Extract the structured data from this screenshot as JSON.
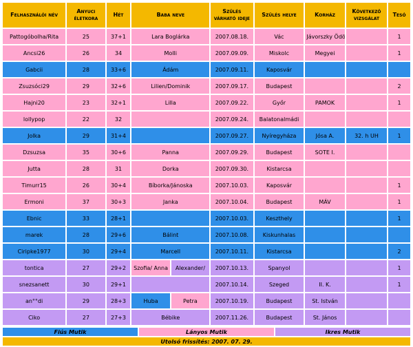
{
  "colors": {
    "header": "#f4b800",
    "boy": "#2f8fe8",
    "girl": "#ffa6cf",
    "twin": "#c39af3"
  },
  "headers": [
    "Felhasználói név",
    "Anyuci életkora",
    "Hét",
    "Baba neve",
    "Szülés várható ideje",
    "Szülés helye",
    "Korház",
    "Következő vizsgálat",
    "Tesó"
  ],
  "rows": [
    {
      "nick": "Pattogóbolha/Rita",
      "age": "25",
      "week": "37+1",
      "baby": "Lara Boglárka",
      "due": "2007.08.18.",
      "place": "Vác",
      "hospital": "Jávorszky Ödön",
      "next": "",
      "sib": "1",
      "type": "girl"
    },
    {
      "nick": "Ancsi26",
      "age": "26",
      "week": "34",
      "baby": "Molli",
      "due": "2007.09.09.",
      "place": "Miskolc",
      "hospital": "Megyei",
      "next": "",
      "sib": "1",
      "type": "girl"
    },
    {
      "nick": "Gabcii",
      "age": "28",
      "week": "33+6",
      "baby": "Ádám",
      "due": "2007.09.11.",
      "place": "Kaposvár",
      "hospital": "",
      "next": "",
      "sib": "",
      "type": "boy"
    },
    {
      "nick": "Zsuzsóci29",
      "age": "29",
      "week": "32+6",
      "baby": "Lilien/Dominik",
      "due": "2007.09.17.",
      "place": "Budapest",
      "hospital": "",
      "next": "",
      "sib": "2",
      "type": "girl"
    },
    {
      "nick": "Hajni20",
      "age": "23",
      "week": "32+1",
      "baby": "Lilla",
      "due": "2007.09.22.",
      "place": "Győr",
      "hospital": "PAMOK",
      "next": "",
      "sib": "1",
      "type": "girl"
    },
    {
      "nick": "lollypop",
      "age": "22",
      "week": "32",
      "baby": "",
      "due": "2007.09.24.",
      "place": "Balatonalmádi",
      "hospital": "",
      "next": "",
      "sib": "",
      "type": "girl"
    },
    {
      "nick": "Jolka",
      "age": "29",
      "week": "31+4",
      "baby": "",
      "due": "2007.09.27.",
      "place": "Nyíregyháza",
      "hospital": "Jósa A.",
      "next": "32. h UH",
      "sib": "1",
      "type": "boy"
    },
    {
      "nick": "Dzsuzsa",
      "age": "35",
      "week": "30+6",
      "baby": "Panna",
      "due": "2007.09.29.",
      "place": "Budapest",
      "hospital": "SOTE I.",
      "next": "",
      "sib": "",
      "type": "girl"
    },
    {
      "nick": "Jutta",
      "age": "28",
      "week": "31",
      "baby": "Dorka",
      "due": "2007.09.30.",
      "place": "Kistarcsa",
      "hospital": "",
      "next": "",
      "sib": "",
      "type": "girl"
    },
    {
      "nick": "Timurr15",
      "age": "26",
      "week": "30+4",
      "baby": "Bíborka/Jánoska",
      "due": "2007.10.03.",
      "place": "Kaposvár",
      "hospital": "",
      "next": "",
      "sib": "1",
      "type": "girl"
    },
    {
      "nick": "Ermoni",
      "age": "37",
      "week": "30+3",
      "baby": "Janka",
      "due": "2007.10.04.",
      "place": "Budapest",
      "hospital": "MÁV",
      "next": "",
      "sib": "1",
      "type": "girl"
    },
    {
      "nick": "Ebnic",
      "age": "33",
      "week": "28+1",
      "baby": "",
      "due": "2007.10.03.",
      "place": "Keszthely",
      "hospital": "",
      "next": "",
      "sib": "1",
      "type": "boy"
    },
    {
      "nick": "marek",
      "age": "28",
      "week": "29+6",
      "baby": "Bálint",
      "due": "2007.10.08.",
      "place": "Kiskunhalas",
      "hospital": "",
      "next": "",
      "sib": "",
      "type": "boy"
    },
    {
      "nick": "Ciripke1977",
      "age": "30",
      "week": "29+4",
      "baby": "Marcell",
      "due": "2007.10.11.",
      "place": "Kistarcsa",
      "hospital": "",
      "next": "",
      "sib": "2",
      "type": "boy"
    },
    {
      "nick": "tontica",
      "age": "27",
      "week": "29+2",
      "baby_a": "Szofia/ Anna",
      "baby_b": "Alexander/",
      "due": "2007.10.13.",
      "place": "Spanyol",
      "hospital": "",
      "next": "",
      "sib": "1",
      "type": "twin",
      "split": "girl-twin"
    },
    {
      "nick": "snezsanett",
      "age": "30",
      "week": "29+1",
      "baby": "",
      "due": "2007.10.14.",
      "place": "Szeged",
      "hospital": "II. K.",
      "next": "",
      "sib": "1",
      "type": "twin"
    },
    {
      "nick": "an°°di",
      "age": "29",
      "week": "28+3",
      "baby_a": "Huba",
      "baby_b": "Petra",
      "due": "2007.10.19.",
      "place": "Budapest",
      "hospital": "St. István",
      "next": "",
      "sib": "",
      "type": "twin",
      "split": "boy-girl"
    },
    {
      "nick": "Ciko",
      "age": "27",
      "week": "27+3",
      "baby": "Bébike",
      "due": "2007.11.26.",
      "place": "Budapest",
      "hospital": "St. János",
      "next": "",
      "sib": "",
      "type": "twin"
    }
  ],
  "legend": {
    "boy": "Fiús Mutik",
    "girl": "Lányos Mutik",
    "twin": "Ikres Mutik"
  },
  "updated": "Utolsó frissítés: 2007. 07. 29."
}
